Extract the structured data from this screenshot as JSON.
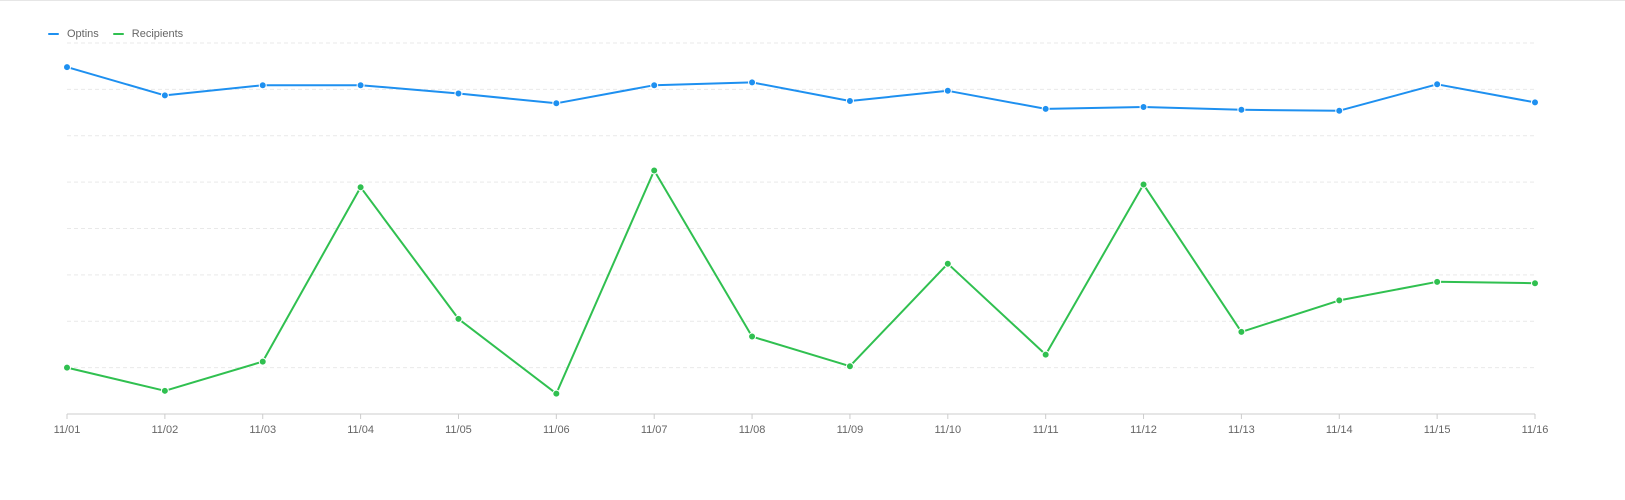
{
  "chart_data": {
    "type": "line",
    "title": "",
    "xlabel": "",
    "ylabel": "",
    "categories": [
      "11/01",
      "11/02",
      "11/03",
      "11/04",
      "11/05",
      "11/06",
      "11/07",
      "11/08",
      "11/09",
      "11/10",
      "11/11",
      "11/12",
      "11/13",
      "11/14",
      "11/15",
      "11/16"
    ],
    "ylim": [
      0,
      8
    ],
    "grid": true,
    "legend_position": "top-left",
    "series": [
      {
        "name": "Optins",
        "color": "#1e90f0",
        "values": [
          7.48,
          6.87,
          7.09,
          7.09,
          6.91,
          6.7,
          7.09,
          7.15,
          6.75,
          6.97,
          6.58,
          6.62,
          6.56,
          6.54,
          7.11,
          6.72
        ]
      },
      {
        "name": "Recipients",
        "color": "#30c050",
        "values": [
          1.0,
          0.5,
          1.13,
          4.89,
          2.05,
          0.44,
          5.25,
          1.67,
          1.03,
          3.24,
          1.28,
          4.95,
          1.77,
          2.45,
          2.85,
          2.82
        ]
      }
    ]
  }
}
